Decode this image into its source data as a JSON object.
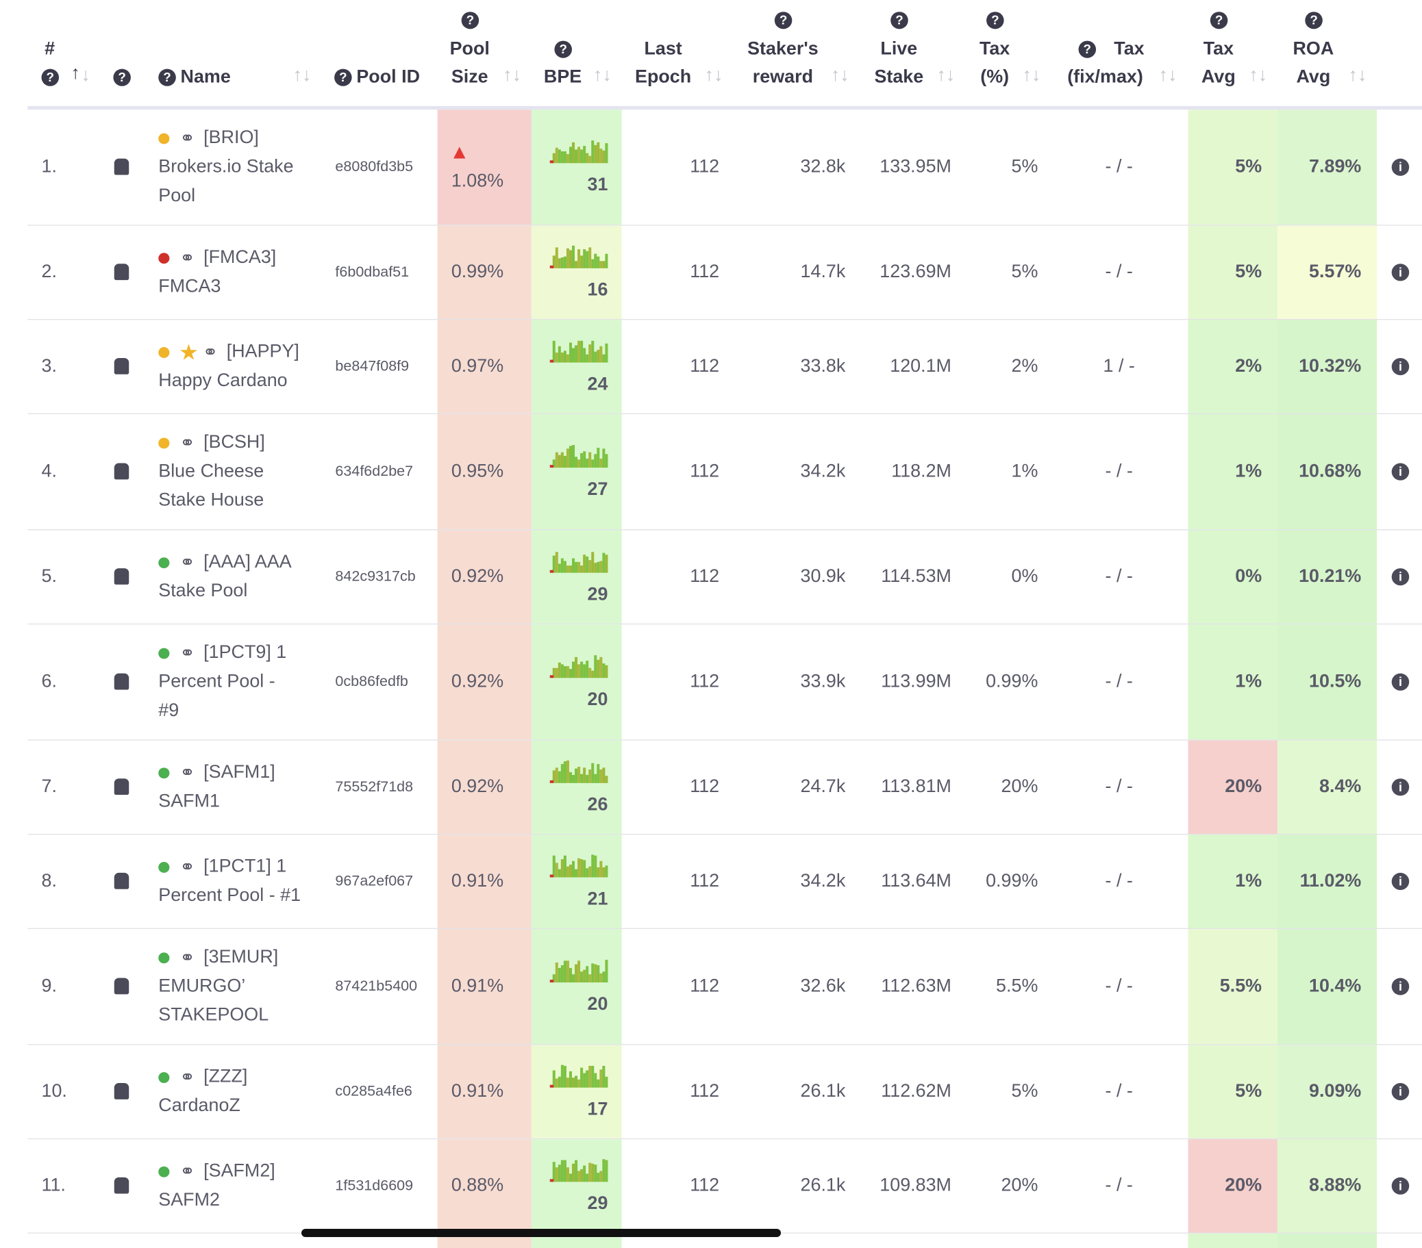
{
  "header": {
    "columns": [
      {
        "key": "rank",
        "lines": [
          "#"
        ]
      },
      {
        "key": "name",
        "lines": [
          "Name"
        ]
      },
      {
        "key": "pool_id",
        "lines": [
          "Pool ID"
        ]
      },
      {
        "key": "size",
        "lines": [
          "Pool",
          "Size"
        ]
      },
      {
        "key": "bpe",
        "lines": [
          "BPE"
        ]
      },
      {
        "key": "last",
        "lines": [
          "Last",
          "Epoch"
        ]
      },
      {
        "key": "reward",
        "lines": [
          "Staker's",
          "reward"
        ]
      },
      {
        "key": "live",
        "lines": [
          "Live",
          "Stake"
        ]
      },
      {
        "key": "tax",
        "lines": [
          "Tax",
          "(%)"
        ]
      },
      {
        "key": "fix",
        "lines": [
          "Tax",
          "(fix/max)"
        ]
      },
      {
        "key": "tax_avg",
        "lines": [
          "Tax",
          "Avg"
        ]
      },
      {
        "key": "roa",
        "lines": [
          "ROA",
          "Avg"
        ]
      }
    ]
  },
  "rows": [
    {
      "rank": "1.",
      "dot": "#f0b429",
      "name_lines": [
        "[BRIO]",
        "Brokers.io Stake",
        "Pool"
      ],
      "pool_id": "e8080fd3b5",
      "size": "1.08%",
      "warning": true,
      "bpe": "31",
      "last": "112",
      "reward": "32.8k",
      "live": "133.95M",
      "tax": "5%",
      "fix": "- / -",
      "tax_avg": "5%",
      "roa": "7.89%",
      "size_bg": "#f6d0cd",
      "bpe_bg": "#d9f8cf",
      "tax_avg_bg": "#e4f8d0",
      "roa_bg": "#dcf6cf"
    },
    {
      "rank": "2.",
      "dot": "#d0302a",
      "name_lines": [
        "[FMCA3]",
        "FMCA3"
      ],
      "pool_id": "f6b0dbaf51",
      "size": "0.99%",
      "bpe": "16",
      "last": "112",
      "reward": "14.7k",
      "live": "123.69M",
      "tax": "5%",
      "fix": "- / -",
      "tax_avg": "5%",
      "roa": "5.57%",
      "size_bg": "#f7dcd2",
      "bpe_bg": "#effad4",
      "tax_avg_bg": "#e4f8d0",
      "roa_bg": "#f6fcd6"
    },
    {
      "rank": "3.",
      "dot": "#f0b429",
      "star": true,
      "name_lines": [
        "[HAPPY]",
        "Happy Cardano"
      ],
      "pool_id": "be847f08f9",
      "size": "0.97%",
      "bpe": "24",
      "last": "112",
      "reward": "33.8k",
      "live": "120.1M",
      "tax": "2%",
      "fix": "1 / -",
      "tax_avg": "2%",
      "roa": "10.32%",
      "size_bg": "#f7dcd2",
      "bpe_bg": "#d9f8cf",
      "tax_avg_bg": "#daf7cd",
      "roa_bg": "#d6f5cb"
    },
    {
      "rank": "4.",
      "dot": "#f0b429",
      "name_lines": [
        "[BCSH]",
        "Blue Cheese",
        "Stake House"
      ],
      "pool_id": "634f6d2be7",
      "size": "0.95%",
      "bpe": "27",
      "last": "112",
      "reward": "34.2k",
      "live": "118.2M",
      "tax": "1%",
      "fix": "- / -",
      "tax_avg": "1%",
      "roa": "10.68%",
      "size_bg": "#f7dcd2",
      "bpe_bg": "#d9f8cf",
      "tax_avg_bg": "#daf7cd",
      "roa_bg": "#d6f5cb"
    },
    {
      "rank": "5.",
      "dot": "#4caf50",
      "name_lines": [
        "[AAA] AAA",
        "Stake Pool"
      ],
      "pool_id": "842c9317cb",
      "size": "0.92%",
      "bpe": "29",
      "last": "112",
      "reward": "30.9k",
      "live": "114.53M",
      "tax": "0%",
      "fix": "- / -",
      "tax_avg": "0%",
      "roa": "10.21%",
      "size_bg": "#f7dcd2",
      "bpe_bg": "#d9f8cf",
      "tax_avg_bg": "#daf7cd",
      "roa_bg": "#d6f5cb"
    },
    {
      "rank": "6.",
      "dot": "#4caf50",
      "name_lines": [
        "[1PCT9] 1",
        "Percent Pool -",
        "#9"
      ],
      "pool_id": "0cb86fedfb",
      "size": "0.92%",
      "bpe": "20",
      "last": "112",
      "reward": "33.9k",
      "live": "113.99M",
      "tax": "0.99%",
      "fix": "- / -",
      "tax_avg": "1%",
      "roa": "10.5%",
      "size_bg": "#f7dcd2",
      "bpe_bg": "#d9f8cf",
      "tax_avg_bg": "#daf7cd",
      "roa_bg": "#d6f5cb"
    },
    {
      "rank": "7.",
      "dot": "#4caf50",
      "name_lines": [
        "[SAFM1]",
        "SAFM1"
      ],
      "pool_id": "75552f71d8",
      "size": "0.92%",
      "bpe": "26",
      "last": "112",
      "reward": "24.7k",
      "live": "113.81M",
      "tax": "20%",
      "fix": "- / -",
      "tax_avg": "20%",
      "roa": "8.4%",
      "size_bg": "#f7dcd2",
      "bpe_bg": "#d9f8cf",
      "tax_avg_bg": "#f6d0cd",
      "roa_bg": "#e2f8d0"
    },
    {
      "rank": "8.",
      "dot": "#4caf50",
      "name_lines": [
        "[1PCT1] 1",
        "Percent Pool - #1"
      ],
      "pool_id": "967a2ef067",
      "size": "0.91%",
      "bpe": "21",
      "last": "112",
      "reward": "34.2k",
      "live": "113.64M",
      "tax": "0.99%",
      "fix": "- / -",
      "tax_avg": "1%",
      "roa": "11.02%",
      "size_bg": "#f7dcd2",
      "bpe_bg": "#d9f8cf",
      "tax_avg_bg": "#daf7cd",
      "roa_bg": "#d6f5cb"
    },
    {
      "rank": "9.",
      "dot": "#4caf50",
      "name_lines": [
        "[3EMUR]",
        "EMURGO’",
        "STAKEPOOL"
      ],
      "pool_id": "87421b5400",
      "size": "0.91%",
      "bpe": "20",
      "last": "112",
      "reward": "32.6k",
      "live": "112.63M",
      "tax": "5.5%",
      "fix": "- / -",
      "tax_avg": "5.5%",
      "roa": "10.4%",
      "size_bg": "#f7dcd2",
      "bpe_bg": "#d9f8cf",
      "tax_avg_bg": "#e8f9d2",
      "roa_bg": "#d6f5cb"
    },
    {
      "rank": "10.",
      "dot": "#4caf50",
      "name_lines": [
        "[ZZZ]",
        "CardanoZ"
      ],
      "pool_id": "c0285a4fe6",
      "size": "0.91%",
      "bpe": "17",
      "last": "112",
      "reward": "26.1k",
      "live": "112.62M",
      "tax": "5%",
      "fix": "- / -",
      "tax_avg": "5%",
      "roa": "9.09%",
      "size_bg": "#f7dcd2",
      "bpe_bg": "#ecfad2",
      "tax_avg_bg": "#e4f8d0",
      "roa_bg": "#dcf6cf"
    },
    {
      "rank": "11.",
      "dot": "#4caf50",
      "name_lines": [
        "[SAFM2]",
        "SAFM2"
      ],
      "pool_id": "1f531d6609",
      "size": "0.88%",
      "bpe": "29",
      "last": "112",
      "reward": "26.1k",
      "live": "109.83M",
      "tax": "20%",
      "fix": "- / -",
      "tax_avg": "20%",
      "roa": "8.88%",
      "size_bg": "#f7dcd2",
      "bpe_bg": "#d9f8cf",
      "tax_avg_bg": "#f6d0cd",
      "roa_bg": "#e0f7cf"
    }
  ]
}
